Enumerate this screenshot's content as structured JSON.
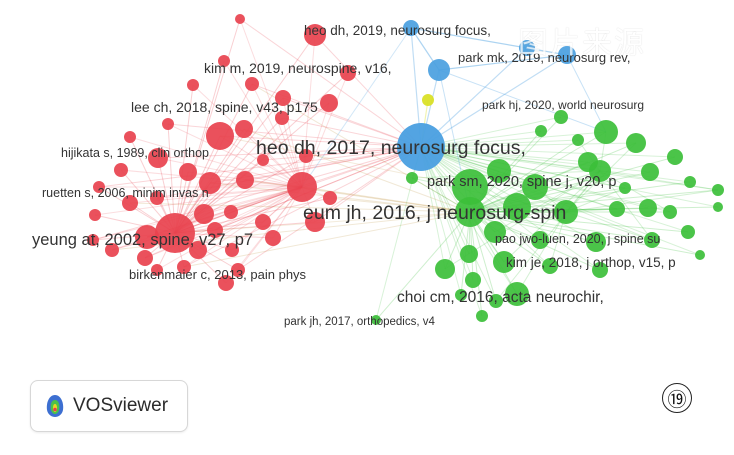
{
  "network": {
    "colors": {
      "red": "#e8424e",
      "green": "#3cbf3a",
      "blue": "#4a9fe0",
      "yellow": "#d9e021"
    },
    "labels": [
      "heo dh, 2019, neurosurg focus,",
      "park mk, 2019, neurosurg rev,",
      "kim m, 2019, neurospine, v16,",
      "park hj, 2020, world neurosurg",
      "lee ch, 2018, spine, v43, p175",
      "heo dh, 2017, neurosurg focus,",
      "hijikata s, 1989, clin orthop",
      "park sm, 2020, spine j, v20, p",
      "ruetten s, 2006, minim invas n",
      "eum jh, 2016, j neurosurg-spin",
      "yeung at, 2002, spine, v27, p7",
      "pao jwo-luen, 2020, j spine su",
      "kim je, 2018, j orthop, v15, p",
      "birkenmaier c, 2013, pain phys",
      "choi cm, 2016, acta neurochir,",
      "park jh, 2017, orthopedics, v4"
    ]
  },
  "brand": {
    "icon": "vosviewer-logo-icon",
    "name": "VOSviewer"
  },
  "figure_number": "⑲",
  "watermark": "图片来源"
}
